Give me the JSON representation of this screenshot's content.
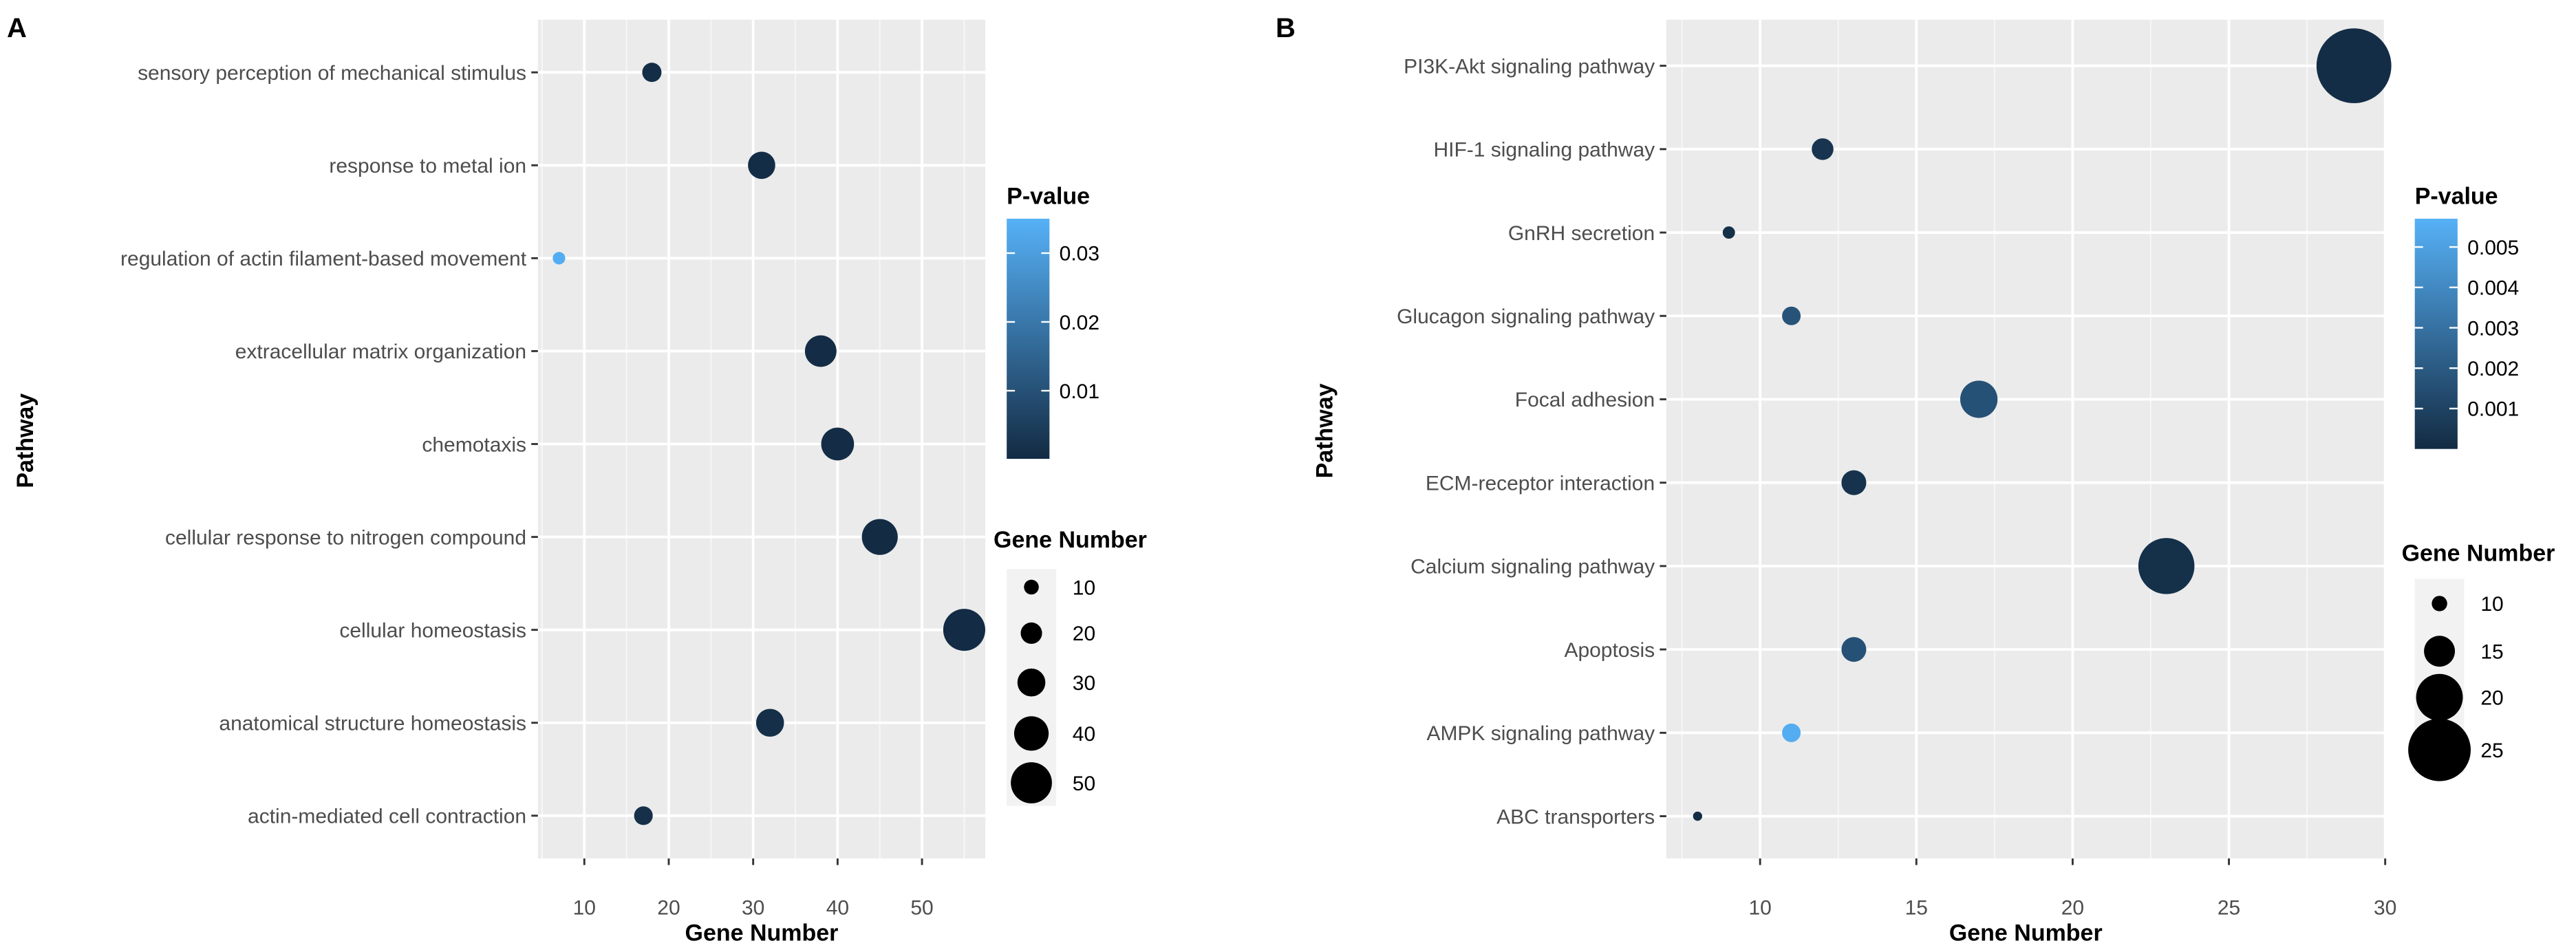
{
  "chart_data": [
    {
      "panel": "A",
      "type": "scatter",
      "title": "",
      "xlabel": "Gene Number",
      "ylabel": "Pathway",
      "xlim": [
        4.5,
        57.5
      ],
      "xticks": [
        10,
        20,
        30,
        40,
        50
      ],
      "categories": [
        "sensory perception of mechanical stimulus",
        "response to metal ion",
        "regulation of actin filament-based movement",
        "extracellular matrix organization",
        "chemotaxis",
        "cellular response to nitrogen compound",
        "cellular homeostasis",
        "anatomical structure homeostasis",
        "actin-mediated cell contraction"
      ],
      "x": [
        18,
        31,
        7,
        38,
        40,
        45,
        55,
        32,
        17
      ],
      "pvalue": [
        0.0008,
        0.0006,
        0.034,
        0.0004,
        0.0004,
        0.0003,
        0.0002,
        0.0012,
        0.0015
      ],
      "color_legend": {
        "title": "P-value",
        "min": 0.0001,
        "max": 0.035,
        "ticks": [
          0.01,
          0.02,
          0.03
        ],
        "tick_labels": [
          "0.01",
          "0.02",
          "0.03"
        ],
        "low_color": "#132B43",
        "high_color": "#56B1F7"
      },
      "size_legend": {
        "title": "Gene Number",
        "values": [
          10,
          20,
          30,
          40,
          50
        ],
        "labels": [
          "10",
          "20",
          "30",
          "40",
          "50"
        ]
      },
      "grid": true,
      "legend_position": "right"
    },
    {
      "panel": "B",
      "type": "scatter",
      "title": "",
      "xlabel": "Gene Number",
      "ylabel": "Pathway",
      "xlim": [
        7.0,
        30.0
      ],
      "xticks": [
        10,
        15,
        20,
        25,
        30
      ],
      "categories": [
        "PI3K-Akt signaling pathway",
        "HIF-1 signaling pathway",
        "GnRH secretion",
        "Glucagon signaling pathway",
        "Focal adhesion",
        "ECM-receptor interaction",
        "Calcium signaling pathway",
        "Apoptosis",
        "AMPK signaling pathway",
        "ABC transporters"
      ],
      "x": [
        29,
        12,
        9,
        11,
        17,
        13,
        23,
        13,
        11,
        8
      ],
      "pvalue": [
        0.0001,
        0.0004,
        0.0002,
        0.0017,
        0.0016,
        0.0003,
        0.0002,
        0.0016,
        0.0055,
        0.0001
      ],
      "color_legend": {
        "title": "P-value",
        "min": 0.0,
        "max": 0.0057,
        "ticks": [
          0.001,
          0.002,
          0.003,
          0.004,
          0.005
        ],
        "tick_labels": [
          "0.001",
          "0.002",
          "0.003",
          "0.004",
          "0.005"
        ],
        "low_color": "#132B43",
        "high_color": "#56B1F7"
      },
      "size_legend": {
        "title": "Gene Number",
        "values": [
          10,
          15,
          20,
          25
        ],
        "labels": [
          "10",
          "15",
          "20",
          "25"
        ]
      },
      "grid": true,
      "legend_position": "right"
    }
  ]
}
